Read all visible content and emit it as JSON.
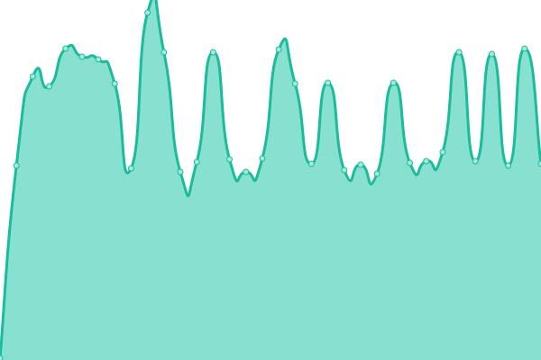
{
  "chart_data": {
    "type": "area",
    "title": "",
    "xlabel": "",
    "ylabel": "",
    "x": [
      0,
      1,
      2,
      3,
      4,
      5,
      6,
      7,
      8,
      9,
      10,
      11,
      12,
      13,
      14,
      15,
      16,
      17,
      18,
      19,
      20,
      21,
      22,
      23,
      24,
      25,
      26,
      27,
      28,
      29,
      30,
      31,
      32,
      33
    ],
    "values": [
      2,
      216,
      315,
      304,
      346,
      337,
      334,
      307,
      213,
      386,
      342,
      209,
      220,
      342,
      223,
      209,
      224,
      345,
      307,
      218,
      308,
      211,
      217,
      207,
      308,
      219,
      221,
      231,
      342,
      221,
      340,
      216,
      346,
      218
    ],
    "ylim": [
      0,
      400
    ],
    "grid": false,
    "legend": "none",
    "smooth": true,
    "colors": {
      "line": "#1abc9c",
      "fill": "#88e0d0",
      "marker_fill": "#a3e9dc",
      "marker_stroke": "#1abc9c"
    }
  }
}
